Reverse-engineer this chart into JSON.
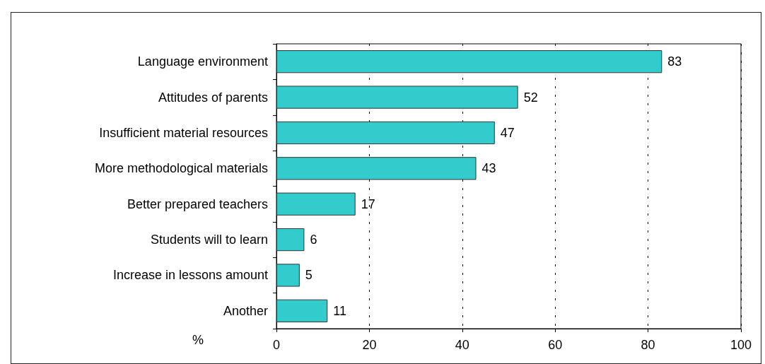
{
  "chart_data": {
    "type": "bar",
    "orientation": "horizontal",
    "categories": [
      "Language environment",
      "Attitudes of parents",
      "Insufficient material resources",
      "More methodological materials",
      "Better prepared teachers",
      "Students will to learn",
      "Increase in lessons amount",
      "Another"
    ],
    "values": [
      83,
      52,
      47,
      43,
      17,
      6,
      5,
      11
    ],
    "color": "#33cccc",
    "xlabel": "%",
    "xlim": [
      0,
      100
    ],
    "xticks": [
      0,
      20,
      40,
      60,
      80,
      100
    ],
    "grid": "x",
    "data_labels": true
  }
}
